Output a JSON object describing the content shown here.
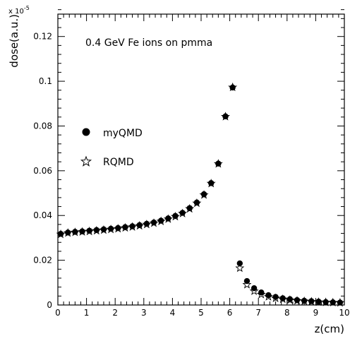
{
  "chart_data": {
    "type": "scatter",
    "annotation": "0.4 GeV Fe ions on pmma",
    "xlabel": "z(cm)",
    "ylabel": "dose(a.u.)",
    "y_multiplier": "x 10",
    "y_exponent": "-5",
    "xlim": [
      0,
      10
    ],
    "ylim": [
      0,
      0.13
    ],
    "x_ticks": [
      0,
      1,
      2,
      3,
      4,
      5,
      6,
      7,
      8,
      9,
      10
    ],
    "x_tick_labels": [
      "0",
      "1",
      "2",
      "3",
      "4",
      "5",
      "6",
      "7",
      "8",
      "9",
      "10"
    ],
    "y_ticks": [
      0,
      0.02,
      0.04,
      0.06,
      0.08,
      0.1,
      0.12
    ],
    "y_tick_labels": [
      "0",
      "0.02",
      "0.04",
      "0.06",
      "0.08",
      "0.1",
      "0.12"
    ],
    "grid": false,
    "legend": "middle-left",
    "series": [
      {
        "name": "myQMD",
        "marker": "filled-circle",
        "x": [
          0.1,
          0.35,
          0.6,
          0.85,
          1.1,
          1.35,
          1.6,
          1.85,
          2.1,
          2.35,
          2.6,
          2.85,
          3.1,
          3.35,
          3.6,
          3.85,
          4.1,
          4.35,
          4.6,
          4.85,
          5.1,
          5.35,
          5.6,
          5.85,
          6.1,
          6.35,
          6.6,
          6.85,
          7.1,
          7.35,
          7.6,
          7.85,
          8.1,
          8.35,
          8.6,
          8.85,
          9.1,
          9.35,
          9.6,
          9.85
        ],
        "y": [
          0.0318,
          0.0324,
          0.0327,
          0.0329,
          0.0332,
          0.0335,
          0.0338,
          0.0341,
          0.0344,
          0.0348,
          0.0352,
          0.0357,
          0.0363,
          0.0369,
          0.0377,
          0.0387,
          0.0398,
          0.0412,
          0.0433,
          0.0458,
          0.0495,
          0.0545,
          0.0632,
          0.0843,
          0.0972,
          0.0186,
          0.0107,
          0.0075,
          0.0056,
          0.0044,
          0.0036,
          0.003,
          0.0026,
          0.0022,
          0.0019,
          0.0017,
          0.0015,
          0.0013,
          0.0012,
          0.0011
        ]
      },
      {
        "name": "RQMD",
        "marker": "open-star",
        "x": [
          0.1,
          0.35,
          0.6,
          0.85,
          1.1,
          1.35,
          1.6,
          1.85,
          2.1,
          2.35,
          2.6,
          2.85,
          3.1,
          3.35,
          3.6,
          3.85,
          4.1,
          4.35,
          4.6,
          4.85,
          5.1,
          5.35,
          5.6,
          5.85,
          6.1,
          6.35,
          6.6,
          6.85,
          7.1,
          7.35,
          7.6,
          7.85,
          8.1,
          8.35,
          8.6,
          8.85,
          9.1,
          9.35,
          9.6,
          9.85
        ],
        "y": [
          0.0316,
          0.0322,
          0.0325,
          0.0327,
          0.0329,
          0.0332,
          0.0335,
          0.0338,
          0.0341,
          0.0345,
          0.0349,
          0.0354,
          0.036,
          0.0366,
          0.0374,
          0.0384,
          0.0395,
          0.0409,
          0.043,
          0.0455,
          0.0492,
          0.0543,
          0.0631,
          0.0842,
          0.0973,
          0.0165,
          0.0091,
          0.0062,
          0.0047,
          0.0037,
          0.003,
          0.0026,
          0.0022,
          0.0019,
          0.0017,
          0.0015,
          0.0013,
          0.0012,
          0.0011,
          0.001
        ]
      }
    ]
  }
}
